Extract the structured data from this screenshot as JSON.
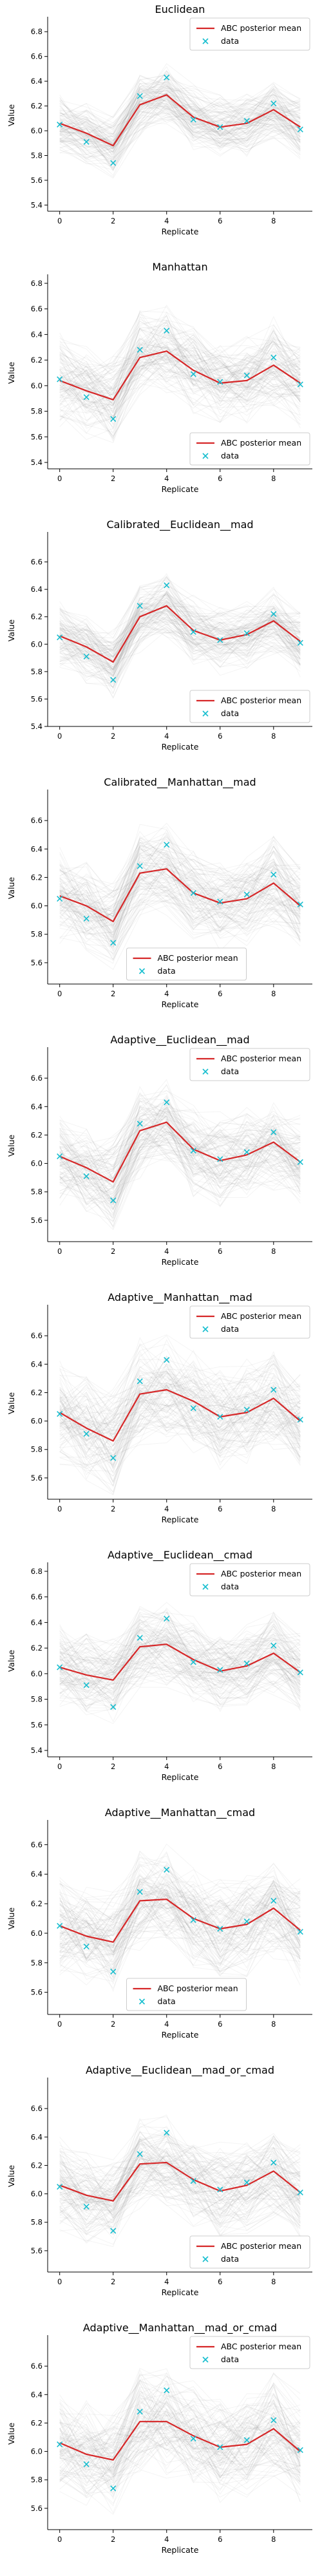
{
  "colors": {
    "posterior_mean": "#d62728",
    "data": "#17becf",
    "samples": "#888888",
    "axis": "#000000"
  },
  "chart_data": [
    {
      "type": "line",
      "title": "Euclidean",
      "xlabel": "Replicate",
      "ylabel": "Value",
      "x": [
        0,
        1,
        2,
        3,
        4,
        5,
        6,
        7,
        8,
        9
      ],
      "xticks": [
        "0",
        "2",
        "4",
        "6",
        "8"
      ],
      "ylim": [
        5.35,
        6.9
      ],
      "yticks": [
        5.4,
        5.6,
        5.8,
        6.0,
        6.2,
        6.4,
        6.6,
        6.8
      ],
      "band": [
        0.15,
        0.22
      ],
      "legend_position": "top-right",
      "series": [
        {
          "name": "ABC posterior mean",
          "kind": "line",
          "values": [
            6.06,
            5.98,
            5.88,
            6.21,
            6.29,
            6.11,
            6.03,
            6.06,
            6.17,
            6.03
          ]
        },
        {
          "name": "data",
          "kind": "scatter",
          "values": [
            6.05,
            5.91,
            5.74,
            6.28,
            6.43,
            6.09,
            6.03,
            6.08,
            6.22,
            6.01
          ]
        }
      ]
    },
    {
      "type": "line",
      "title": "Manhattan",
      "xlabel": "Replicate",
      "ylabel": "Value",
      "x": [
        0,
        1,
        2,
        3,
        4,
        5,
        6,
        7,
        8,
        9
      ],
      "xticks": [
        "0",
        "2",
        "4",
        "6",
        "8"
      ],
      "ylim": [
        5.35,
        6.85
      ],
      "yticks": [
        5.4,
        5.6,
        5.8,
        6.0,
        6.2,
        6.4,
        6.6,
        6.8
      ],
      "band": [
        0.22,
        0.3
      ],
      "legend_position": "bottom-right",
      "series": [
        {
          "name": "ABC posterior mean",
          "kind": "line",
          "values": [
            6.04,
            5.96,
            5.89,
            6.22,
            6.27,
            6.12,
            6.02,
            6.04,
            6.16,
            6.02
          ]
        },
        {
          "name": "data",
          "kind": "scatter",
          "values": [
            6.05,
            5.91,
            5.74,
            6.28,
            6.43,
            6.09,
            6.03,
            6.08,
            6.22,
            6.01
          ]
        }
      ]
    },
    {
      "type": "line",
      "title": "Calibrated__Euclidean__mad",
      "xlabel": "Replicate",
      "ylabel": "Value",
      "x": [
        0,
        1,
        2,
        3,
        4,
        5,
        6,
        7,
        8,
        9
      ],
      "xticks": [
        "0",
        "2",
        "4",
        "6",
        "8"
      ],
      "ylim": [
        5.4,
        6.8
      ],
      "yticks": [
        5.4,
        5.6,
        5.8,
        6.0,
        6.2,
        6.4,
        6.6
      ],
      "band": [
        0.15,
        0.22
      ],
      "legend_position": "bottom-right",
      "series": [
        {
          "name": "ABC posterior mean",
          "kind": "line",
          "values": [
            6.06,
            5.98,
            5.87,
            6.2,
            6.28,
            6.1,
            6.03,
            6.07,
            6.17,
            6.02
          ]
        },
        {
          "name": "data",
          "kind": "scatter",
          "values": [
            6.05,
            5.91,
            5.74,
            6.28,
            6.43,
            6.09,
            6.03,
            6.08,
            6.22,
            6.01
          ]
        }
      ]
    },
    {
      "type": "line",
      "title": "Calibrated__Manhattan__mad",
      "xlabel": "Replicate",
      "ylabel": "Value",
      "x": [
        0,
        1,
        2,
        3,
        4,
        5,
        6,
        7,
        8,
        9
      ],
      "xticks": [
        "0",
        "2",
        "4",
        "6",
        "8"
      ],
      "ylim": [
        5.45,
        6.8
      ],
      "yticks": [
        5.6,
        5.8,
        6.0,
        6.2,
        6.4,
        6.6
      ],
      "band": [
        0.2,
        0.28
      ],
      "legend_position": "bottom-center",
      "series": [
        {
          "name": "ABC posterior mean",
          "kind": "line",
          "values": [
            6.07,
            6.0,
            5.89,
            6.23,
            6.26,
            6.09,
            6.02,
            6.05,
            6.16,
            6.0
          ]
        },
        {
          "name": "data",
          "kind": "scatter",
          "values": [
            6.05,
            5.91,
            5.74,
            6.28,
            6.43,
            6.09,
            6.03,
            6.08,
            6.22,
            6.01
          ]
        }
      ]
    },
    {
      "type": "line",
      "title": "Adaptive__Euclidean__mad",
      "xlabel": "Replicate",
      "ylabel": "Value",
      "x": [
        0,
        1,
        2,
        3,
        4,
        5,
        6,
        7,
        8,
        9
      ],
      "xticks": [
        "0",
        "2",
        "4",
        "6",
        "8"
      ],
      "ylim": [
        5.45,
        6.8
      ],
      "yticks": [
        5.6,
        5.8,
        6.0,
        6.2,
        6.4,
        6.6
      ],
      "band": [
        0.2,
        0.28
      ],
      "legend_position": "top-right",
      "series": [
        {
          "name": "ABC posterior mean",
          "kind": "line",
          "values": [
            6.05,
            5.97,
            5.87,
            6.23,
            6.29,
            6.1,
            6.02,
            6.06,
            6.15,
            6.01
          ]
        },
        {
          "name": "data",
          "kind": "scatter",
          "values": [
            6.05,
            5.91,
            5.74,
            6.28,
            6.43,
            6.09,
            6.03,
            6.08,
            6.22,
            6.01
          ]
        }
      ]
    },
    {
      "type": "line",
      "title": "Adaptive__Manhattan__mad",
      "xlabel": "Replicate",
      "ylabel": "Value",
      "x": [
        0,
        1,
        2,
        3,
        4,
        5,
        6,
        7,
        8,
        9
      ],
      "xticks": [
        "0",
        "2",
        "4",
        "6",
        "8"
      ],
      "ylim": [
        5.45,
        6.8
      ],
      "yticks": [
        5.6,
        5.8,
        6.0,
        6.2,
        6.4,
        6.6
      ],
      "band": [
        0.24,
        0.32
      ],
      "legend_position": "top-right",
      "series": [
        {
          "name": "ABC posterior mean",
          "kind": "line",
          "values": [
            6.06,
            5.95,
            5.86,
            6.19,
            6.22,
            6.14,
            6.03,
            6.06,
            6.16,
            6.0
          ]
        },
        {
          "name": "data",
          "kind": "scatter",
          "values": [
            6.05,
            5.91,
            5.74,
            6.28,
            6.43,
            6.09,
            6.03,
            6.08,
            6.22,
            6.01
          ]
        }
      ]
    },
    {
      "type": "line",
      "title": "Adaptive__Euclidean__cmad",
      "xlabel": "Replicate",
      "ylabel": "Value",
      "x": [
        0,
        1,
        2,
        3,
        4,
        5,
        6,
        7,
        8,
        9
      ],
      "xticks": [
        "0",
        "2",
        "4",
        "6",
        "8"
      ],
      "ylim": [
        5.35,
        6.85
      ],
      "yticks": [
        5.4,
        5.6,
        5.8,
        6.0,
        6.2,
        6.4,
        6.6,
        6.8
      ],
      "band": [
        0.2,
        0.28
      ],
      "legend_position": "top-right",
      "series": [
        {
          "name": "ABC posterior mean",
          "kind": "line",
          "values": [
            6.05,
            5.99,
            5.95,
            6.21,
            6.23,
            6.11,
            6.02,
            6.06,
            6.16,
            6.01
          ]
        },
        {
          "name": "data",
          "kind": "scatter",
          "values": [
            6.05,
            5.91,
            5.74,
            6.28,
            6.43,
            6.09,
            6.03,
            6.08,
            6.22,
            6.01
          ]
        }
      ]
    },
    {
      "type": "line",
      "title": "Adaptive__Manhattan__cmad",
      "xlabel": "Replicate",
      "ylabel": "Value",
      "x": [
        0,
        1,
        2,
        3,
        4,
        5,
        6,
        7,
        8,
        9
      ],
      "xticks": [
        "0",
        "2",
        "4",
        "6",
        "8"
      ],
      "ylim": [
        5.45,
        6.75
      ],
      "yticks": [
        5.6,
        5.8,
        6.0,
        6.2,
        6.4,
        6.6
      ],
      "band": [
        0.22,
        0.3
      ],
      "legend_position": "bottom-center",
      "series": [
        {
          "name": "ABC posterior mean",
          "kind": "line",
          "values": [
            6.05,
            5.98,
            5.94,
            6.22,
            6.23,
            6.1,
            6.03,
            6.06,
            6.17,
            6.02
          ]
        },
        {
          "name": "data",
          "kind": "scatter",
          "values": [
            6.05,
            5.91,
            5.74,
            6.28,
            6.43,
            6.09,
            6.03,
            6.08,
            6.22,
            6.01
          ]
        }
      ]
    },
    {
      "type": "line",
      "title": "Adaptive__Euclidean__mad_or_cmad",
      "xlabel": "Replicate",
      "ylabel": "Value",
      "x": [
        0,
        1,
        2,
        3,
        4,
        5,
        6,
        7,
        8,
        9
      ],
      "xticks": [
        "0",
        "2",
        "4",
        "6",
        "8"
      ],
      "ylim": [
        5.45,
        6.8
      ],
      "yticks": [
        5.6,
        5.8,
        6.0,
        6.2,
        6.4,
        6.6
      ],
      "band": [
        0.2,
        0.28
      ],
      "legend_position": "bottom-right",
      "series": [
        {
          "name": "ABC posterior mean",
          "kind": "line",
          "values": [
            6.06,
            5.99,
            5.95,
            6.21,
            6.22,
            6.1,
            6.02,
            6.06,
            6.16,
            6.01
          ]
        },
        {
          "name": "data",
          "kind": "scatter",
          "values": [
            6.05,
            5.91,
            5.74,
            6.28,
            6.43,
            6.09,
            6.03,
            6.08,
            6.22,
            6.01
          ]
        }
      ]
    },
    {
      "type": "line",
      "title": "Adaptive__Manhattan__mad_or_cmad",
      "xlabel": "Replicate",
      "ylabel": "Value",
      "x": [
        0,
        1,
        2,
        3,
        4,
        5,
        6,
        7,
        8,
        9
      ],
      "xticks": [
        "0",
        "2",
        "4",
        "6",
        "8"
      ],
      "ylim": [
        5.45,
        6.8
      ],
      "yticks": [
        5.6,
        5.8,
        6.0,
        6.2,
        6.4,
        6.6
      ],
      "band": [
        0.24,
        0.32
      ],
      "legend_position": "top-right",
      "series": [
        {
          "name": "ABC posterior mean",
          "kind": "line",
          "values": [
            6.06,
            5.98,
            5.94,
            6.21,
            6.21,
            6.11,
            6.03,
            6.05,
            6.16,
            6.0
          ]
        },
        {
          "name": "data",
          "kind": "scatter",
          "values": [
            6.05,
            5.91,
            5.74,
            6.28,
            6.43,
            6.09,
            6.03,
            6.08,
            6.22,
            6.01
          ]
        }
      ]
    }
  ]
}
